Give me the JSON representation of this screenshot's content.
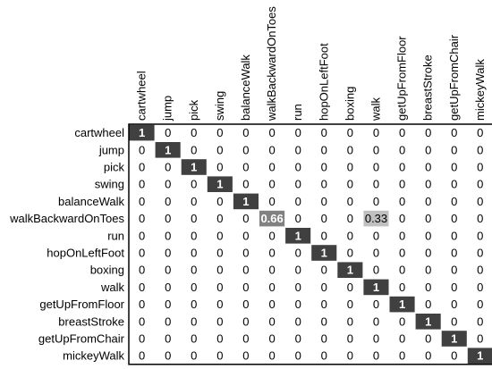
{
  "chart_data": {
    "type": "heatmap",
    "title": "",
    "xlabel": "",
    "ylabel": "",
    "columns": [
      "cartwheel",
      "jump",
      "pick",
      "swing",
      "balanceWalk",
      "walkBackwardOnToes",
      "run",
      "hopOnLeftFoot",
      "boxing",
      "walk",
      "getUpFromFloor",
      "breastStroke",
      "getUpFromChair",
      "mickeyWalk"
    ],
    "rows": [
      "cartwheel",
      "jump",
      "pick",
      "swing",
      "balanceWalk",
      "walkBackwardOnToes",
      "run",
      "hopOnLeftFoot",
      "boxing",
      "walk",
      "getUpFromFloor",
      "breastStroke",
      "getUpFromChair",
      "mickeyWalk"
    ],
    "values": [
      [
        1,
        0,
        0,
        0,
        0,
        0,
        0,
        0,
        0,
        0,
        0,
        0,
        0,
        0
      ],
      [
        0,
        1,
        0,
        0,
        0,
        0,
        0,
        0,
        0,
        0,
        0,
        0,
        0,
        0
      ],
      [
        0,
        0,
        1,
        0,
        0,
        0,
        0,
        0,
        0,
        0,
        0,
        0,
        0,
        0
      ],
      [
        0,
        0,
        0,
        1,
        0,
        0,
        0,
        0,
        0,
        0,
        0,
        0,
        0,
        0
      ],
      [
        0,
        0,
        0,
        0,
        1,
        0,
        0,
        0,
        0,
        0,
        0,
        0,
        0,
        0
      ],
      [
        0,
        0,
        0,
        0,
        0,
        0.66,
        0,
        0,
        0,
        0.33,
        0,
        0,
        0,
        0
      ],
      [
        0,
        0,
        0,
        0,
        0,
        0,
        1,
        0,
        0,
        0,
        0,
        0,
        0,
        0
      ],
      [
        0,
        0,
        0,
        0,
        0,
        0,
        0,
        1,
        0,
        0,
        0,
        0,
        0,
        0
      ],
      [
        0,
        0,
        0,
        0,
        0,
        0,
        0,
        0,
        1,
        0,
        0,
        0,
        0,
        0
      ],
      [
        0,
        0,
        0,
        0,
        0,
        0,
        0,
        0,
        0,
        1,
        0,
        0,
        0,
        0
      ],
      [
        0,
        0,
        0,
        0,
        0,
        0,
        0,
        0,
        0,
        0,
        1,
        0,
        0,
        0
      ],
      [
        0,
        0,
        0,
        0,
        0,
        0,
        0,
        0,
        0,
        0,
        0,
        1,
        0,
        0
      ],
      [
        0,
        0,
        0,
        0,
        0,
        0,
        0,
        0,
        0,
        0,
        0,
        0,
        1,
        0
      ],
      [
        0,
        0,
        0,
        0,
        0,
        0,
        0,
        0,
        0,
        0,
        0,
        0,
        0,
        1
      ]
    ],
    "value_range": [
      0,
      1
    ],
    "colors": {
      "high": "#404040",
      "low": "#ffffff",
      "text_dark": "#000000",
      "text_light": "#ffffff"
    },
    "grid": false
  }
}
